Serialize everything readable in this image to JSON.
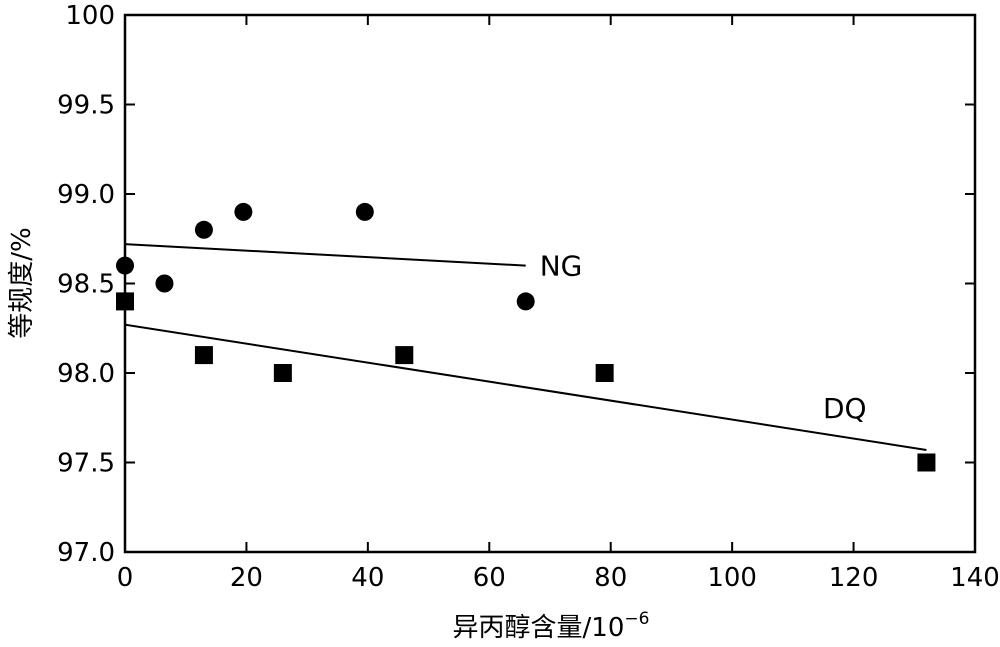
{
  "chart_data": {
    "type": "scatter",
    "xlabel": "异丙醇含量/10",
    "xlabel_sup": "−6",
    "ylabel": "等规度/%",
    "xlim": [
      0,
      140
    ],
    "ylim": [
      97.0,
      100
    ],
    "xticks": [
      "0",
      "20",
      "40",
      "60",
      "80",
      "100",
      "120",
      "140"
    ],
    "yticks": [
      "97.0",
      "97.5",
      "98.0",
      "98.5",
      "99.0",
      "99.5",
      "100"
    ],
    "grid": false,
    "legend": "none",
    "series": [
      {
        "name": "NG",
        "marker": "circle",
        "points": [
          [
            0,
            98.6
          ],
          [
            6.5,
            98.5
          ],
          [
            13,
            98.8
          ],
          [
            19.5,
            98.9
          ],
          [
            39.5,
            98.9
          ],
          [
            66,
            98.4
          ]
        ],
        "fit": [
          [
            0,
            98.72
          ],
          [
            66,
            98.6
          ]
        ]
      },
      {
        "name": "DQ",
        "marker": "square",
        "points": [
          [
            0,
            98.4
          ],
          [
            13,
            98.1
          ],
          [
            26,
            98.0
          ],
          [
            46,
            98.1
          ],
          [
            79,
            98.0
          ],
          [
            132,
            97.5
          ]
        ],
        "fit": [
          [
            0,
            98.27
          ],
          [
            132,
            97.57
          ]
        ]
      }
    ]
  }
}
